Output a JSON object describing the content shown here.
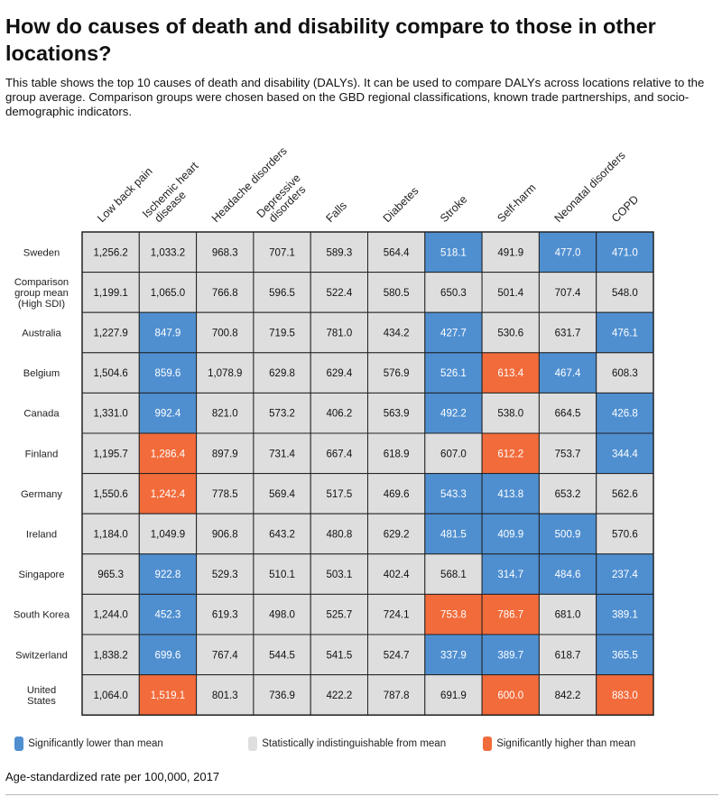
{
  "title": "How do causes of death and disability compare to those in other locations?",
  "subtitle": "This table shows the top 10 causes of death and disability (DALYs). It can be used to compare DALYs across locations relative to the group average. Comparison groups were chosen based on the GBD regional classifications, known trade partnerships, and socio-demographic indicators.",
  "colors": {
    "lower": "#4f8fd0",
    "neutral": "#dedede",
    "higher": "#f26b3a",
    "border": "#222222"
  },
  "legend": {
    "lower": "Significantly lower than mean",
    "neutral": "Statistically indistinguishable from mean",
    "higher": "Significantly higher than mean"
  },
  "footnote": "Age-standardized rate per 100,000, 2017",
  "chart_data": {
    "type": "table",
    "title": "How do causes of death and disability compare to those in other locations?",
    "units": "Age-standardized rate per 100,000, 2017",
    "columns": [
      [
        "Low back pain"
      ],
      [
        "Ischemic heart",
        "disease"
      ],
      [
        "Headache disorders"
      ],
      [
        "Depressive",
        "disorders"
      ],
      [
        "Falls"
      ],
      [
        "Diabetes"
      ],
      [
        "Stroke"
      ],
      [
        "Self-harm"
      ],
      [
        "Neonatal disorders"
      ],
      [
        "COPD"
      ]
    ],
    "rows": [
      {
        "label": [
          "Sweden"
        ],
        "values": [
          "1,256.2",
          "1,033.2",
          "968.3",
          "707.1",
          "589.3",
          "564.4",
          "518.1",
          "491.9",
          "477.0",
          "471.0"
        ],
        "status": [
          "n",
          "n",
          "n",
          "n",
          "n",
          "n",
          "l",
          "n",
          "l",
          "l"
        ]
      },
      {
        "label": [
          "Comparison",
          "group mean",
          "(High SDI)"
        ],
        "values": [
          "1,199.1",
          "1,065.0",
          "766.8",
          "596.5",
          "522.4",
          "580.5",
          "650.3",
          "501.4",
          "707.4",
          "548.0"
        ],
        "status": [
          "n",
          "n",
          "n",
          "n",
          "n",
          "n",
          "n",
          "n",
          "n",
          "n"
        ]
      },
      {
        "label": [
          "Australia"
        ],
        "values": [
          "1,227.9",
          "847.9",
          "700.8",
          "719.5",
          "781.0",
          "434.2",
          "427.7",
          "530.6",
          "631.7",
          "476.1"
        ],
        "status": [
          "n",
          "l",
          "n",
          "n",
          "n",
          "n",
          "l",
          "n",
          "n",
          "l"
        ]
      },
      {
        "label": [
          "Belgium"
        ],
        "values": [
          "1,504.6",
          "859.6",
          "1,078.9",
          "629.8",
          "629.4",
          "576.9",
          "526.1",
          "613.4",
          "467.4",
          "608.3"
        ],
        "status": [
          "n",
          "l",
          "n",
          "n",
          "n",
          "n",
          "l",
          "h",
          "l",
          "n"
        ]
      },
      {
        "label": [
          "Canada"
        ],
        "values": [
          "1,331.0",
          "992.4",
          "821.0",
          "573.2",
          "406.2",
          "563.9",
          "492.2",
          "538.0",
          "664.5",
          "426.8"
        ],
        "status": [
          "n",
          "l",
          "n",
          "n",
          "n",
          "n",
          "l",
          "n",
          "n",
          "l"
        ]
      },
      {
        "label": [
          "Finland"
        ],
        "values": [
          "1,195.7",
          "1,286.4",
          "897.9",
          "731.4",
          "667.4",
          "618.9",
          "607.0",
          "612.2",
          "753.7",
          "344.4"
        ],
        "status": [
          "n",
          "h",
          "n",
          "n",
          "n",
          "n",
          "n",
          "h",
          "n",
          "l"
        ]
      },
      {
        "label": [
          "Germany"
        ],
        "values": [
          "1,550.6",
          "1,242.4",
          "778.5",
          "569.4",
          "517.5",
          "469.6",
          "543.3",
          "413.8",
          "653.2",
          "562.6"
        ],
        "status": [
          "n",
          "h",
          "n",
          "n",
          "n",
          "n",
          "l",
          "l",
          "n",
          "n"
        ]
      },
      {
        "label": [
          "Ireland"
        ],
        "values": [
          "1,184.0",
          "1,049.9",
          "906.8",
          "643.2",
          "480.8",
          "629.2",
          "481.5",
          "409.9",
          "500.9",
          "570.6"
        ],
        "status": [
          "n",
          "n",
          "n",
          "n",
          "n",
          "n",
          "l",
          "l",
          "l",
          "n"
        ]
      },
      {
        "label": [
          "Singapore"
        ],
        "values": [
          "965.3",
          "922.8",
          "529.3",
          "510.1",
          "503.1",
          "402.4",
          "568.1",
          "314.7",
          "484.6",
          "237.4"
        ],
        "status": [
          "n",
          "l",
          "n",
          "n",
          "n",
          "n",
          "n",
          "l",
          "l",
          "l"
        ]
      },
      {
        "label": [
          "South Korea"
        ],
        "values": [
          "1,244.0",
          "452.3",
          "619.3",
          "498.0",
          "525.7",
          "724.1",
          "753.8",
          "786.7",
          "681.0",
          "389.1"
        ],
        "status": [
          "n",
          "l",
          "n",
          "n",
          "n",
          "n",
          "h",
          "h",
          "n",
          "l"
        ]
      },
      {
        "label": [
          "Switzerland"
        ],
        "values": [
          "1,838.2",
          "699.6",
          "767.4",
          "544.5",
          "541.5",
          "524.7",
          "337.9",
          "389.7",
          "618.7",
          "365.5"
        ],
        "status": [
          "n",
          "l",
          "n",
          "n",
          "n",
          "n",
          "l",
          "l",
          "n",
          "l"
        ]
      },
      {
        "label": [
          "United",
          "States"
        ],
        "values": [
          "1,064.0",
          "1,519.1",
          "801.3",
          "736.9",
          "422.2",
          "787.8",
          "691.9",
          "600.0",
          "842.2",
          "883.0"
        ],
        "status": [
          "n",
          "h",
          "n",
          "n",
          "n",
          "n",
          "n",
          "h",
          "n",
          "h"
        ]
      }
    ]
  }
}
